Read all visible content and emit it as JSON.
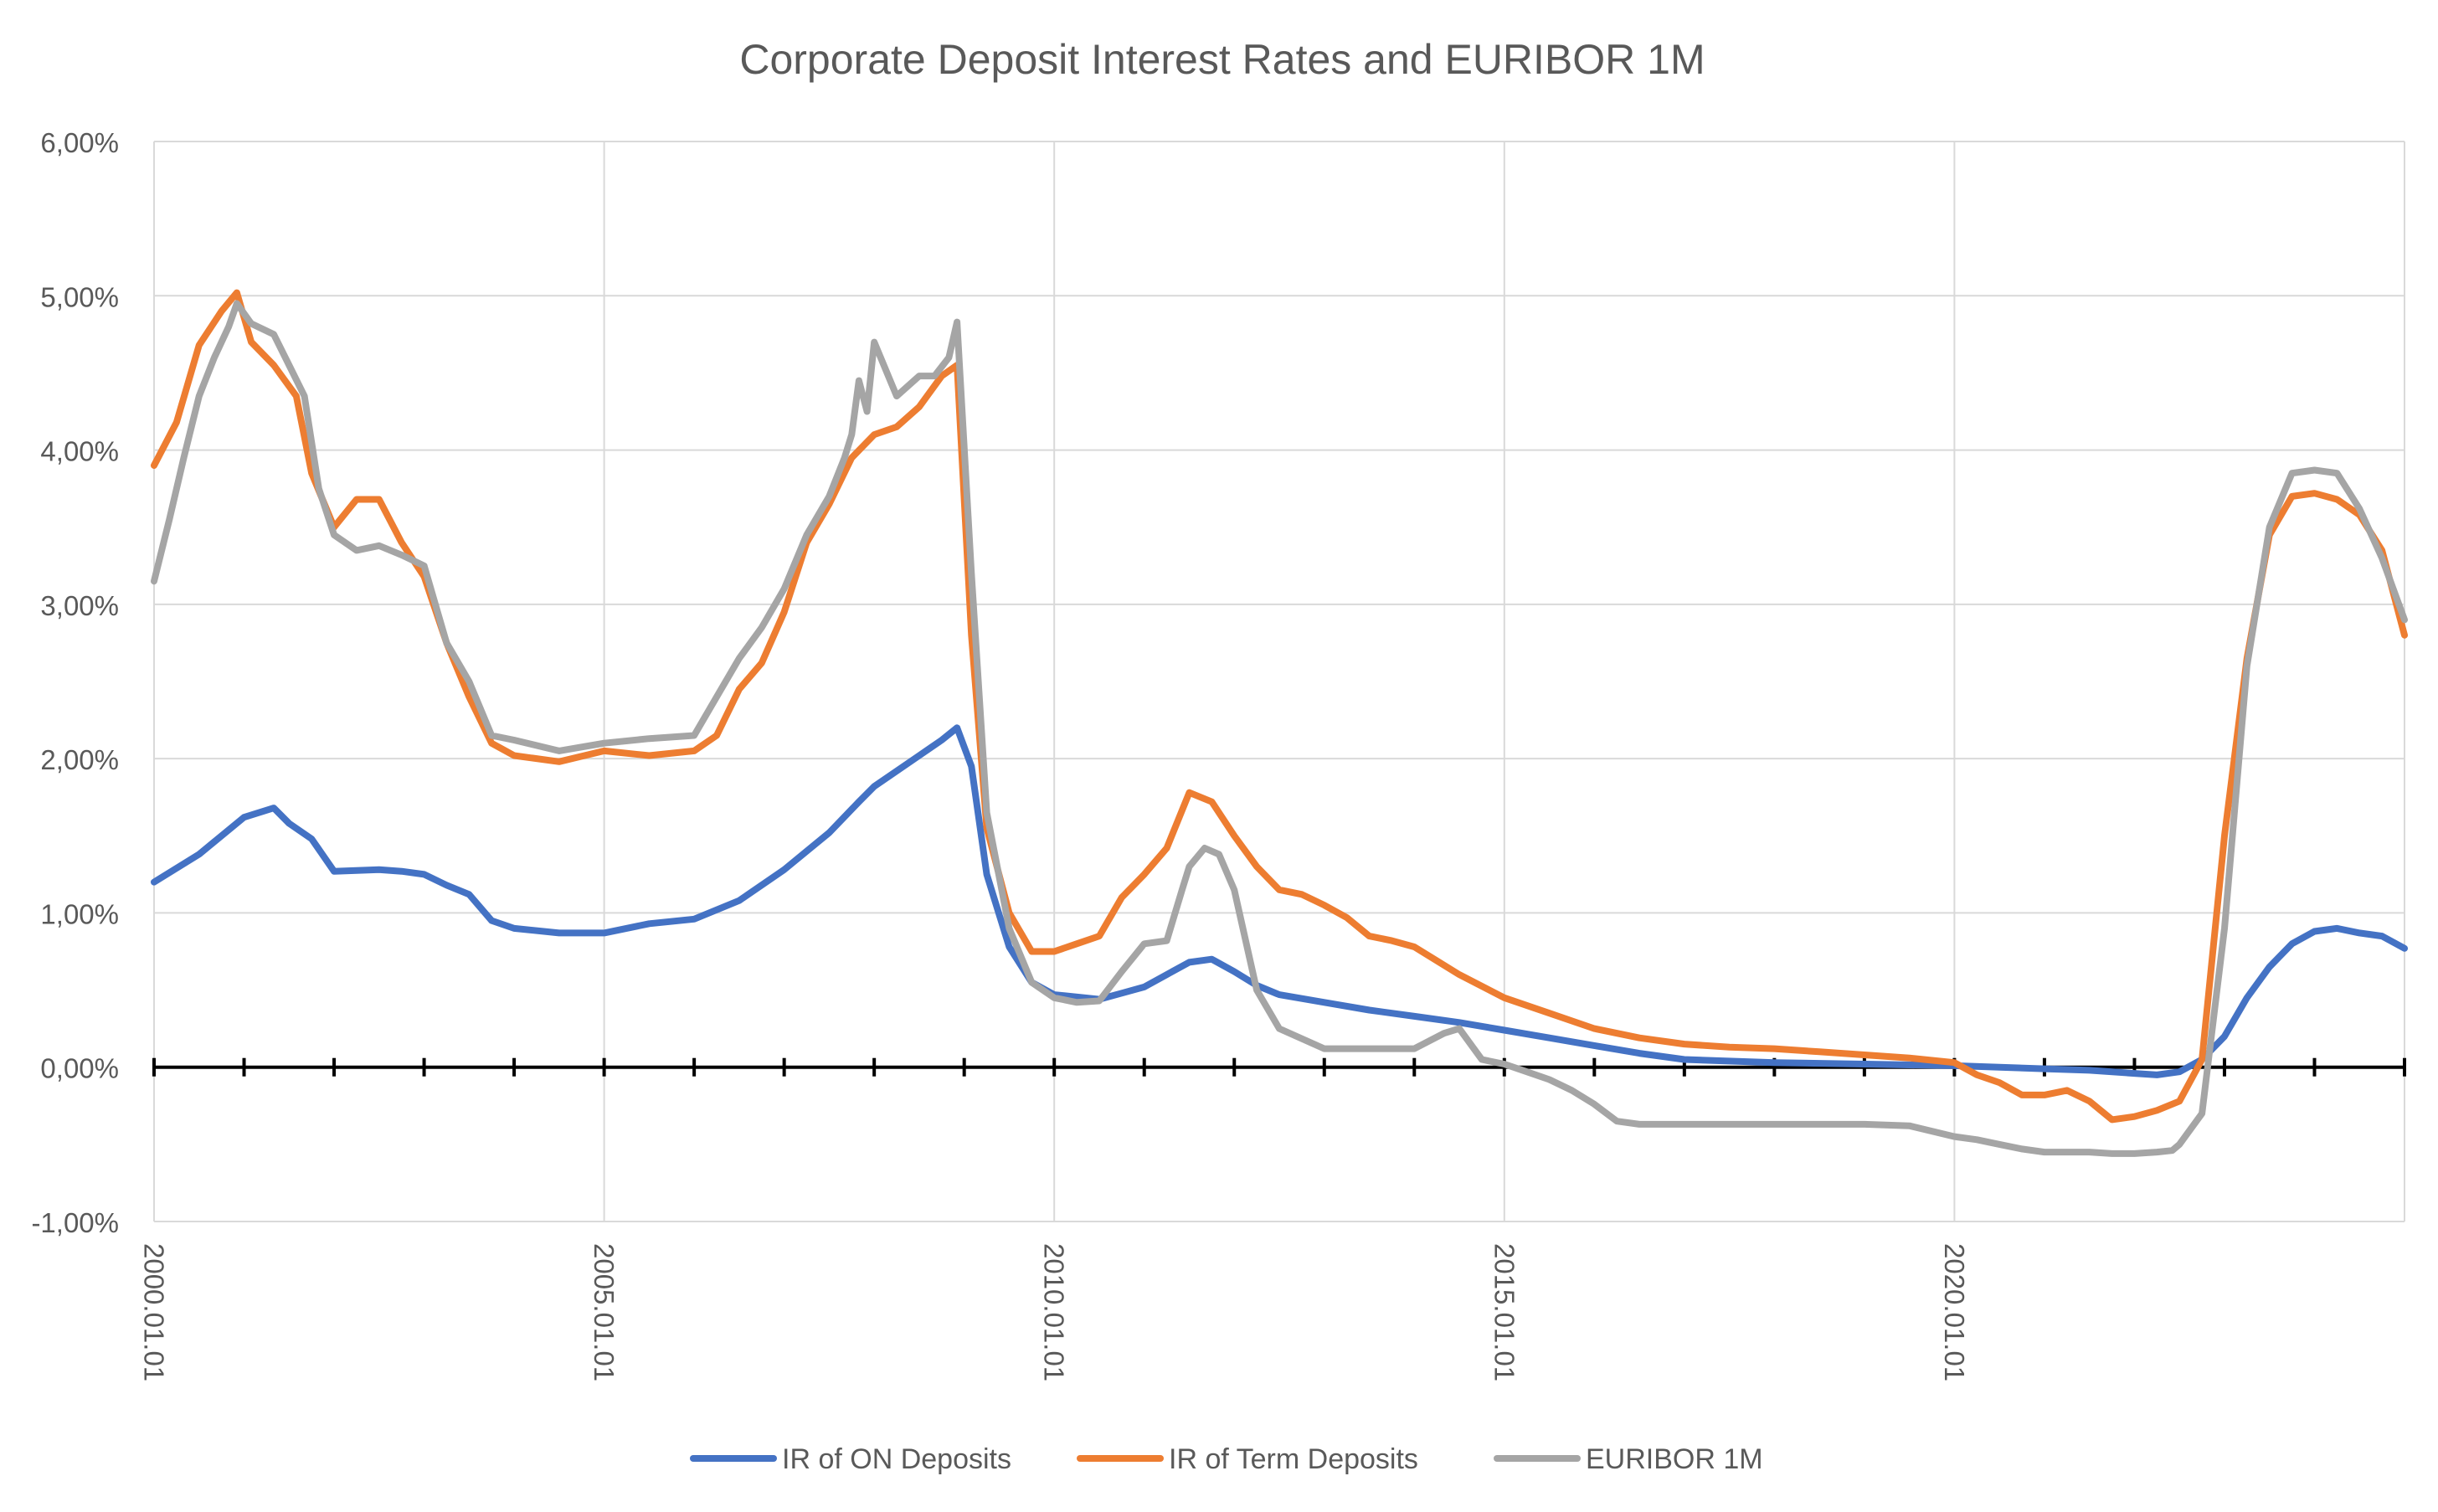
{
  "chart_data": {
    "type": "line",
    "title": "Corporate Deposit Interest Rates and EURIBOR 1M",
    "xlabel": "",
    "ylabel": "",
    "ylim": [
      -0.01,
      0.06
    ],
    "yticks": [
      -0.01,
      0,
      0.01,
      0.02,
      0.03,
      0.04,
      0.05,
      0.06
    ],
    "ytick_labels": [
      "-1,00%",
      "0,00%",
      "1,00%",
      "2,00%",
      "3,00%",
      "4,00%",
      "5,00%",
      "6,00%"
    ],
    "xlim": [
      2000.0,
      2025.0
    ],
    "xticks": [
      2000,
      2005,
      2010,
      2015,
      2020
    ],
    "xtick_labels": [
      "2000.01.01",
      "2005.01.01",
      "2010.01.01",
      "2015.01.01",
      "2020.01.01"
    ],
    "grid": true,
    "legend_position": "bottom",
    "series": [
      {
        "name": "IR of ON Deposits",
        "color": "#4472C4",
        "x": [
          2000.0,
          2000.5,
          2001.0,
          2001.33,
          2001.5,
          2001.75,
          2002.0,
          2002.5,
          2002.75,
          2003.0,
          2003.25,
          2003.5,
          2003.75,
          2004.0,
          2004.5,
          2005.0,
          2005.5,
          2006.0,
          2006.5,
          2007.0,
          2007.5,
          2007.83,
          2008.0,
          2008.5,
          2008.75,
          2008.92,
          2009.08,
          2009.25,
          2009.5,
          2009.75,
          2010.0,
          2010.5,
          2010.75,
          2011.0,
          2011.25,
          2011.5,
          2011.75,
          2012.0,
          2012.25,
          2012.5,
          2013.0,
          2013.5,
          2014.0,
          2014.5,
          2015.0,
          2015.5,
          2016.0,
          2016.5,
          2017.0,
          2018.0,
          2019.0,
          2020.0,
          2020.5,
          2021.0,
          2021.5,
          2022.0,
          2022.25,
          2022.5,
          2022.75,
          2023.0,
          2023.25,
          2023.5,
          2023.75,
          2024.0,
          2024.25,
          2024.5,
          2024.75,
          2025.0
        ],
        "y": [
          0.012,
          0.0138,
          0.0162,
          0.0168,
          0.0158,
          0.0148,
          0.0127,
          0.0128,
          0.0127,
          0.0125,
          0.0118,
          0.0112,
          0.0095,
          0.009,
          0.0087,
          0.0087,
          0.0093,
          0.0096,
          0.0108,
          0.0128,
          0.0152,
          0.0172,
          0.0182,
          0.0202,
          0.0212,
          0.022,
          0.0195,
          0.0125,
          0.0078,
          0.0055,
          0.0047,
          0.0044,
          0.0048,
          0.0052,
          0.006,
          0.0068,
          0.007,
          0.0062,
          0.0053,
          0.0047,
          0.0042,
          0.0037,
          0.0033,
          0.0029,
          0.0024,
          0.0019,
          0.0014,
          0.0009,
          0.0005,
          0.0003,
          0.0002,
          0.0001,
          0.0,
          -0.0001,
          -0.0002,
          -0.0004,
          -0.0005,
          -0.0003,
          0.0005,
          0.002,
          0.0045,
          0.0065,
          0.008,
          0.0088,
          0.009,
          0.0087,
          0.0085,
          0.0077
        ]
      },
      {
        "name": "IR of Term Deposits",
        "color": "#ED7D31",
        "x": [
          2000.0,
          2000.25,
          2000.5,
          2000.75,
          2000.92,
          2001.08,
          2001.33,
          2001.58,
          2001.75,
          2002.0,
          2002.25,
          2002.5,
          2002.75,
          2003.0,
          2003.25,
          2003.5,
          2003.75,
          2004.0,
          2004.5,
          2005.0,
          2005.5,
          2006.0,
          2006.25,
          2006.5,
          2006.75,
          2007.0,
          2007.25,
          2007.5,
          2007.75,
          2008.0,
          2008.25,
          2008.5,
          2008.75,
          2008.92,
          2009.08,
          2009.25,
          2009.5,
          2009.75,
          2010.0,
          2010.25,
          2010.5,
          2010.75,
          2011.0,
          2011.25,
          2011.5,
          2011.75,
          2012.0,
          2012.25,
          2012.5,
          2012.75,
          2013.0,
          2013.25,
          2013.5,
          2013.75,
          2014.0,
          2014.5,
          2015.0,
          2015.5,
          2016.0,
          2016.5,
          2017.0,
          2017.5,
          2018.0,
          2018.5,
          2019.0,
          2019.5,
          2020.0,
          2020.25,
          2020.5,
          2020.75,
          2021.0,
          2021.25,
          2021.5,
          2021.75,
          2022.0,
          2022.25,
          2022.5,
          2022.75,
          2023.0,
          2023.25,
          2023.5,
          2023.75,
          2024.0,
          2024.25,
          2024.5,
          2024.75,
          2025.0
        ],
        "y": [
          0.039,
          0.0418,
          0.0468,
          0.049,
          0.0502,
          0.047,
          0.0455,
          0.0435,
          0.0385,
          0.035,
          0.0368,
          0.0368,
          0.034,
          0.0318,
          0.0275,
          0.024,
          0.021,
          0.0202,
          0.0198,
          0.0205,
          0.0202,
          0.0205,
          0.0215,
          0.0245,
          0.0262,
          0.0295,
          0.034,
          0.0365,
          0.0395,
          0.041,
          0.0415,
          0.0428,
          0.0448,
          0.0455,
          0.028,
          0.0155,
          0.01,
          0.0075,
          0.0075,
          0.008,
          0.0085,
          0.011,
          0.0125,
          0.0142,
          0.0178,
          0.0172,
          0.015,
          0.013,
          0.0115,
          0.0112,
          0.0105,
          0.0097,
          0.0085,
          0.0082,
          0.0078,
          0.006,
          0.0045,
          0.0035,
          0.0025,
          0.0019,
          0.0015,
          0.0013,
          0.0012,
          0.001,
          0.0008,
          0.0006,
          0.0003,
          -0.0005,
          -0.001,
          -0.0018,
          -0.0018,
          -0.0015,
          -0.0022,
          -0.0034,
          -0.0032,
          -0.0028,
          -0.0022,
          0.0005,
          0.015,
          0.0265,
          0.0345,
          0.037,
          0.0372,
          0.0368,
          0.0358,
          0.0335,
          0.028
        ]
      },
      {
        "name": "EURIBOR 1M",
        "color": "#A5A5A5",
        "x": [
          2000.0,
          2000.17,
          2000.33,
          2000.5,
          2000.67,
          2000.83,
          2000.92,
          2001.08,
          2001.33,
          2001.5,
          2001.67,
          2001.83,
          2002.0,
          2002.25,
          2002.5,
          2002.75,
          2003.0,
          2003.25,
          2003.5,
          2003.75,
          2004.0,
          2004.5,
          2005.0,
          2005.5,
          2006.0,
          2006.25,
          2006.5,
          2006.75,
          2007.0,
          2007.25,
          2007.5,
          2007.67,
          2007.75,
          2007.83,
          2007.92,
          2008.0,
          2008.25,
          2008.5,
          2008.67,
          2008.83,
          2008.92,
          2009.08,
          2009.25,
          2009.5,
          2009.75,
          2010.0,
          2010.25,
          2010.5,
          2010.75,
          2011.0,
          2011.25,
          2011.42,
          2011.5,
          2011.67,
          2011.83,
          2012.0,
          2012.25,
          2012.5,
          2013.0,
          2013.5,
          2014.0,
          2014.33,
          2014.5,
          2014.75,
          2015.0,
          2015.25,
          2015.5,
          2015.75,
          2016.0,
          2016.25,
          2016.5,
          2017.0,
          2018.0,
          2019.0,
          2019.5,
          2020.0,
          2020.25,
          2020.5,
          2020.75,
          2021.0,
          2021.5,
          2021.75,
          2022.0,
          2022.25,
          2022.42,
          2022.5,
          2022.75,
          2023.0,
          2023.25,
          2023.5,
          2023.75,
          2024.0,
          2024.25,
          2024.5,
          2024.75,
          2025.0
        ],
        "y": [
          0.0315,
          0.0355,
          0.0395,
          0.0435,
          0.046,
          0.048,
          0.0495,
          0.0482,
          0.0475,
          0.0455,
          0.0435,
          0.0375,
          0.0345,
          0.0335,
          0.0338,
          0.0332,
          0.0325,
          0.0275,
          0.025,
          0.0215,
          0.0212,
          0.0205,
          0.021,
          0.0213,
          0.0215,
          0.024,
          0.0265,
          0.0285,
          0.031,
          0.0345,
          0.037,
          0.0395,
          0.041,
          0.0445,
          0.0425,
          0.047,
          0.0435,
          0.0448,
          0.0448,
          0.046,
          0.0483,
          0.032,
          0.0165,
          0.009,
          0.0055,
          0.0045,
          0.0042,
          0.0043,
          0.0062,
          0.008,
          0.0082,
          0.0115,
          0.013,
          0.0142,
          0.0138,
          0.0115,
          0.005,
          0.0025,
          0.0012,
          0.0012,
          0.0012,
          0.0022,
          0.0025,
          0.0005,
          0.0002,
          -0.0003,
          -0.0008,
          -0.0015,
          -0.0024,
          -0.0035,
          -0.0037,
          -0.0037,
          -0.0037,
          -0.0037,
          -0.0038,
          -0.0045,
          -0.0047,
          -0.005,
          -0.0053,
          -0.0055,
          -0.0055,
          -0.0056,
          -0.0056,
          -0.0055,
          -0.0054,
          -0.005,
          -0.003,
          0.009,
          0.026,
          0.035,
          0.0385,
          0.0387,
          0.0385,
          0.0362,
          0.033,
          0.029
        ]
      }
    ]
  }
}
